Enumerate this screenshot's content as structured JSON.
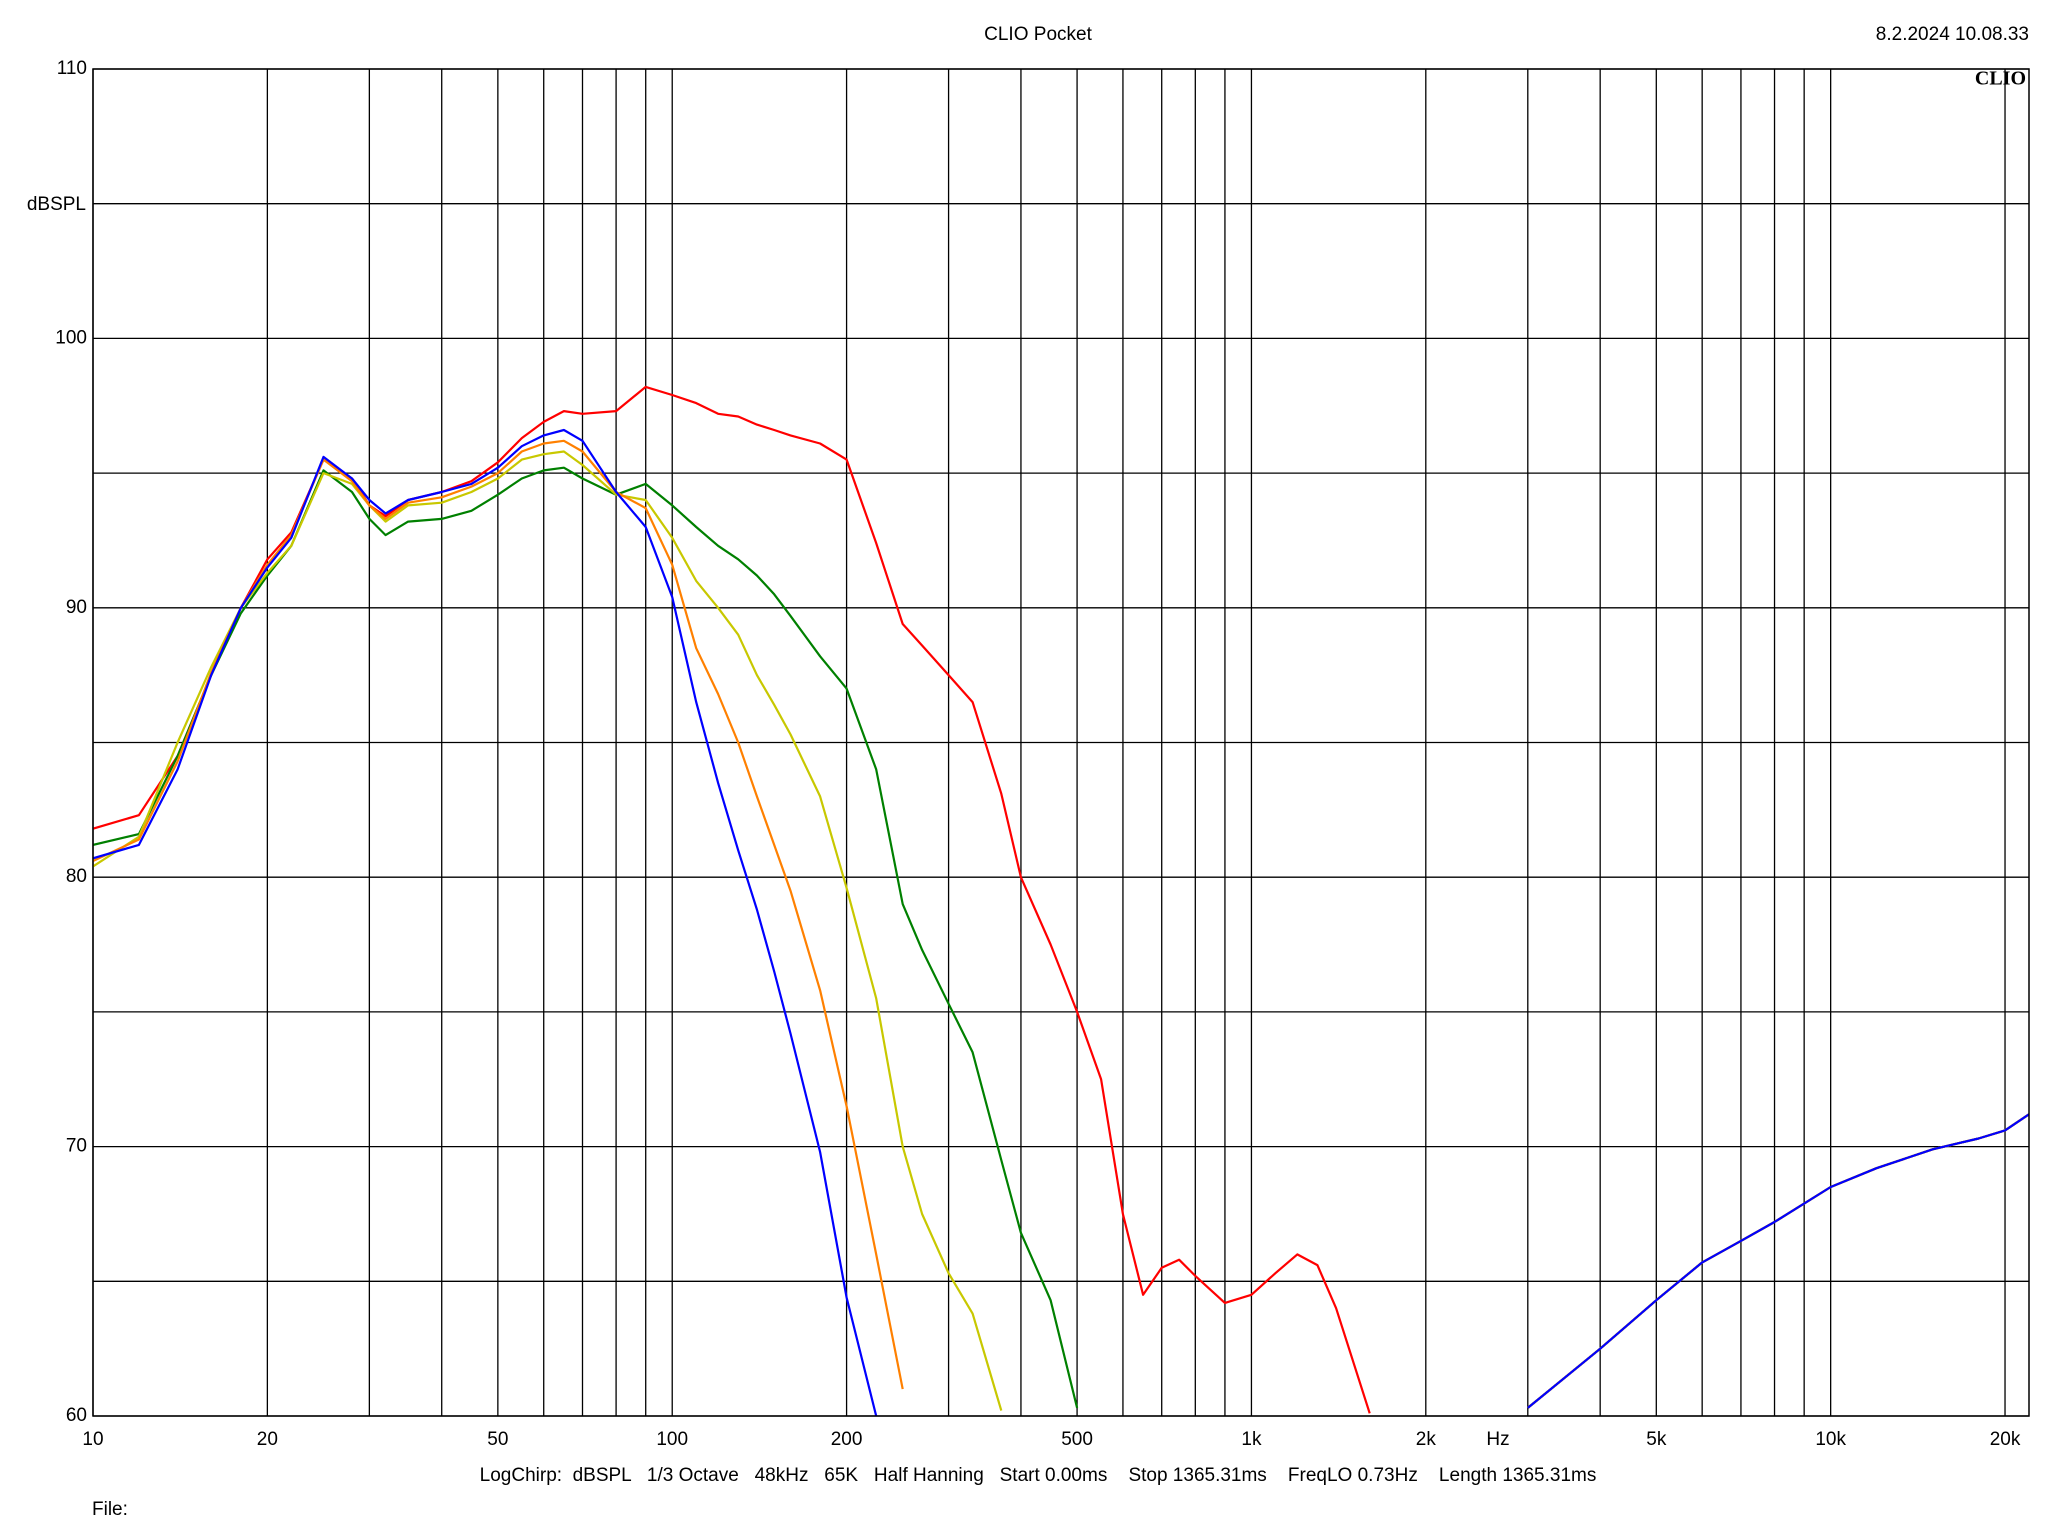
{
  "chart_data": {
    "type": "line",
    "title": "CLIO Pocket",
    "timestamp": "8.2.2024 10.08.33",
    "logo": "CLIO",
    "y_label": "dBSPL",
    "x_label": "Hz",
    "footer": "LogChirp:  dBSPL   1/3 Octave   48kHz   65K   Half Hanning   Start 0.00ms    Stop 1365.31ms    FreqLO 0.73Hz    Length 1365.31ms",
    "file_label": "File:",
    "log_x": true,
    "xlim": [
      10,
      22000
    ],
    "ylim": [
      60,
      110
    ],
    "xticks": [
      10,
      20,
      50,
      100,
      200,
      500,
      {
        "value": 1000,
        "label": "1k"
      },
      {
        "value": 2000,
        "label": "2k"
      },
      {
        "value": 5000,
        "label": "5k"
      },
      {
        "value": 10000,
        "label": "10k"
      },
      {
        "value": 20000,
        "label": "20k"
      }
    ],
    "xminor": [
      30,
      40,
      60,
      70,
      80,
      90,
      300,
      400,
      600,
      700,
      800,
      900,
      3000,
      4000,
      6000,
      7000,
      8000,
      9000
    ],
    "yticks": [
      60,
      70,
      80,
      90,
      100,
      110
    ],
    "yminor": [
      65,
      75,
      85,
      95,
      105
    ],
    "grid": true,
    "x": [
      10,
      12,
      14,
      16,
      18,
      20,
      22,
      25,
      28,
      30,
      32,
      35,
      40,
      45,
      50,
      55,
      60,
      65,
      70,
      80,
      90,
      100,
      110,
      120,
      130,
      140,
      150,
      160,
      180,
      200,
      225,
      250,
      270,
      300,
      330,
      370,
      400,
      450,
      500,
      550,
      600,
      650,
      700,
      750,
      800,
      900,
      1000,
      1100,
      1200,
      1300,
      1400,
      1600,
      2000,
      3000,
      4000,
      5000,
      6000,
      7000,
      8000,
      10000,
      12000,
      15000,
      18000,
      20000,
      22000
    ],
    "series": [
      {
        "color": "#ff0000",
        "values": [
          81.8,
          82.3,
          84.5,
          87.5,
          90,
          91.8,
          92.8,
          95.5,
          94.8,
          93.8,
          93.4,
          94,
          94.3,
          94.7,
          95.4,
          96.3,
          96.9,
          97.3,
          97.2,
          97.3,
          98.2,
          97.9,
          97.6,
          97.2,
          97.1,
          96.8,
          96.6,
          96.4,
          96.1,
          95.5,
          92.4,
          89.4,
          88.6,
          87.5,
          86.5,
          83.1,
          80,
          77.5,
          75,
          72.5,
          67.5,
          64.5,
          65.5,
          65.8,
          65.2,
          64.2,
          64.5,
          65.3,
          66,
          65.6,
          64,
          60.1,
          null,
          60.3,
          62.5,
          64.3,
          65.7,
          66.5,
          67.2,
          68.5,
          69.2,
          69.9,
          70.3,
          70.6,
          71.2
        ]
      },
      {
        "color": "#008000",
        "values": [
          81.2,
          81.6,
          84.5,
          87.5,
          89.8,
          91.2,
          92.3,
          95.1,
          94.3,
          93.3,
          92.7,
          93.2,
          93.3,
          93.6,
          94.2,
          94.8,
          95.1,
          95.2,
          94.8,
          94.2,
          94.6,
          93.8,
          93,
          92.3,
          91.8,
          91.2,
          90.5,
          89.7,
          88.2,
          87,
          84,
          79,
          77.3,
          75.3,
          73.5,
          69.5,
          66.8,
          64.3,
          60.3,
          null,
          null,
          null,
          null,
          null,
          null,
          null,
          null,
          null,
          null,
          null,
          null,
          null,
          null,
          60.3,
          62.5,
          64.3,
          65.7,
          66.5,
          67.2,
          68.5,
          69.2,
          69.9,
          70.3,
          70.6,
          71.2
        ]
      },
      {
        "color": "#c8c800",
        "values": [
          80.4,
          81.5,
          85,
          87.8,
          90,
          91.3,
          92.3,
          95,
          94.6,
          93.8,
          93.2,
          93.8,
          93.9,
          94.3,
          94.8,
          95.5,
          95.7,
          95.8,
          95.3,
          94.2,
          94,
          92.6,
          91,
          90,
          89,
          87.5,
          86.4,
          85.3,
          83,
          79.6,
          75.5,
          70,
          67.5,
          65.3,
          63.8,
          60.2,
          null,
          null,
          null,
          null,
          null,
          null,
          null,
          null,
          null,
          null,
          null,
          null,
          null,
          null,
          null,
          null,
          null,
          60.3,
          62.5,
          64.3,
          65.7,
          66.5,
          67.2,
          68.5,
          69.2,
          69.9,
          70.3,
          70.6,
          71.2
        ]
      },
      {
        "color": "#ff8000",
        "values": [
          80.6,
          81.4,
          84.3,
          87.6,
          90,
          91.6,
          92.7,
          95.5,
          94.7,
          93.8,
          93.3,
          93.9,
          94.1,
          94.5,
          95,
          95.8,
          96.1,
          96.2,
          95.8,
          94.3,
          93.7,
          91.6,
          88.5,
          86.8,
          85,
          83,
          81.2,
          79.5,
          75.8,
          71.5,
          66,
          61,
          null,
          null,
          null,
          null,
          null,
          null,
          null,
          null,
          null,
          null,
          null,
          null,
          null,
          null,
          null,
          null,
          null,
          null,
          null,
          null,
          null,
          60.3,
          62.5,
          64.3,
          65.7,
          66.5,
          67.2,
          68.5,
          69.2,
          69.9,
          70.3,
          70.6,
          71.2
        ]
      },
      {
        "color": "#0000ff",
        "values": [
          80.7,
          81.2,
          84,
          87.5,
          90,
          91.5,
          92.6,
          95.6,
          94.8,
          94,
          93.5,
          94,
          94.3,
          94.6,
          95.2,
          96,
          96.4,
          96.6,
          96.2,
          94.3,
          93,
          90.4,
          86.5,
          83.5,
          81,
          78.8,
          76.5,
          74.2,
          69.8,
          64.4,
          60,
          null,
          null,
          null,
          null,
          null,
          null,
          null,
          null,
          null,
          null,
          null,
          null,
          null,
          null,
          null,
          null,
          null,
          null,
          null,
          null,
          null,
          null,
          60.3,
          62.5,
          64.3,
          65.7,
          66.5,
          67.2,
          68.5,
          69.2,
          69.9,
          70.3,
          70.6,
          71.2
        ]
      }
    ]
  }
}
